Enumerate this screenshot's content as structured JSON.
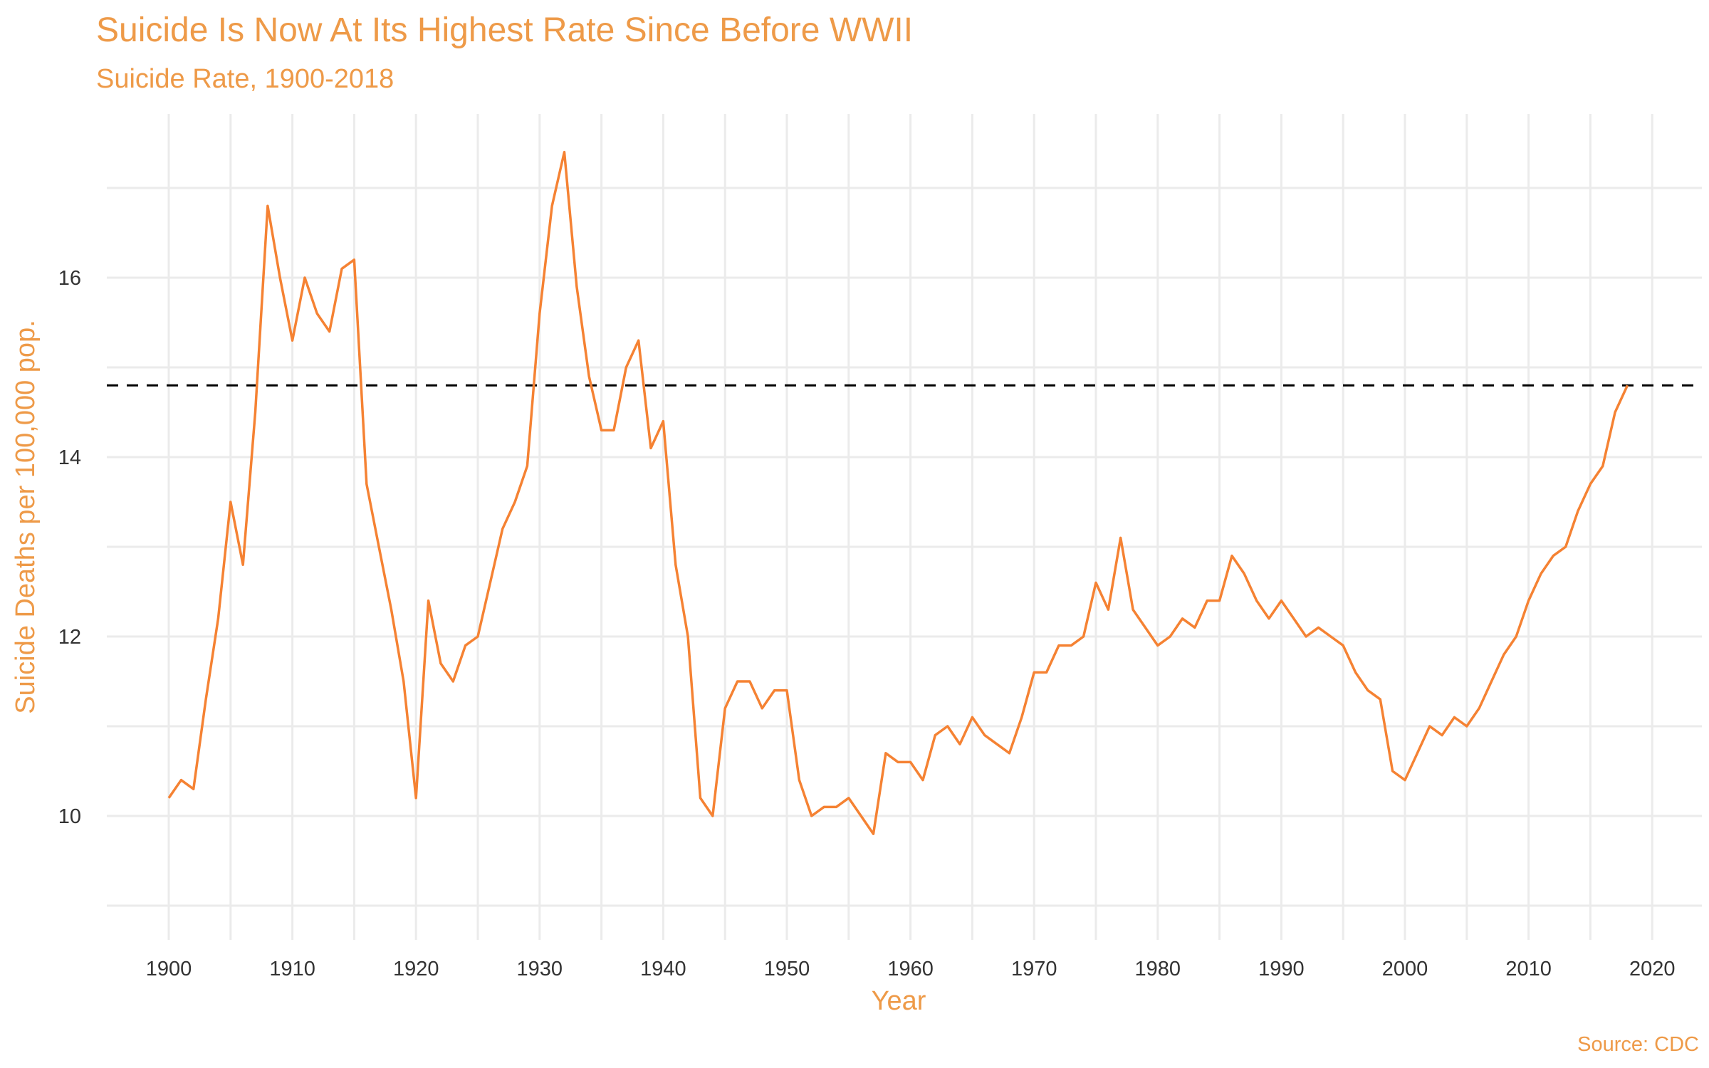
{
  "chart_data": {
    "type": "line",
    "title": "Suicide Is Now At Its Highest Rate Since Before WWII",
    "subtitle": "Suicide Rate, 1900-2018",
    "xlabel": "Year",
    "ylabel": "Suicide Deaths per 100,000 pop.",
    "caption": "Source: CDC",
    "xlim": [
      1899,
      2023
    ],
    "ylim": [
      8.6,
      17.9
    ],
    "x_ticks": [
      1900,
      1910,
      1920,
      1930,
      1940,
      1950,
      1960,
      1970,
      1980,
      1990,
      2000,
      2010,
      2020
    ],
    "y_ticks": [
      10,
      12,
      14,
      16
    ],
    "reference_line": {
      "y": 14.8,
      "style": "dashed",
      "color": "#000000"
    },
    "grid": true,
    "series": [
      {
        "color": "#F58233",
        "x": [
          1900,
          1901,
          1902,
          1903,
          1904,
          1905,
          1906,
          1907,
          1908,
          1909,
          1910,
          1911,
          1912,
          1913,
          1914,
          1915,
          1916,
          1917,
          1918,
          1919,
          1920,
          1921,
          1922,
          1923,
          1924,
          1925,
          1926,
          1927,
          1928,
          1929,
          1930,
          1931,
          1932,
          1933,
          1934,
          1935,
          1936,
          1937,
          1938,
          1939,
          1940,
          1941,
          1942,
          1943,
          1944,
          1945,
          1946,
          1947,
          1948,
          1949,
          1950,
          1951,
          1952,
          1953,
          1954,
          1955,
          1956,
          1957,
          1958,
          1959,
          1960,
          1961,
          1962,
          1963,
          1964,
          1965,
          1966,
          1967,
          1968,
          1969,
          1970,
          1971,
          1972,
          1973,
          1974,
          1975,
          1976,
          1977,
          1978,
          1979,
          1980,
          1981,
          1982,
          1983,
          1984,
          1985,
          1986,
          1987,
          1988,
          1989,
          1990,
          1991,
          1992,
          1993,
          1994,
          1995,
          1996,
          1997,
          1998,
          1999,
          2000,
          2001,
          2002,
          2003,
          2004,
          2005,
          2006,
          2007,
          2008,
          2009,
          2010,
          2011,
          2012,
          2013,
          2014,
          2015,
          2016,
          2017,
          2018
        ],
        "values": [
          10.2,
          10.4,
          10.3,
          11.3,
          12.2,
          13.5,
          12.8,
          14.5,
          16.8,
          16.0,
          15.3,
          16.0,
          15.6,
          15.4,
          16.1,
          16.2,
          13.7,
          13.0,
          12.3,
          11.5,
          10.2,
          12.4,
          11.7,
          11.5,
          11.9,
          12.0,
          12.6,
          13.2,
          13.5,
          13.9,
          15.6,
          16.8,
          17.4,
          15.9,
          14.9,
          14.3,
          14.3,
          15.0,
          15.3,
          14.1,
          14.4,
          12.8,
          12.0,
          10.2,
          10.0,
          11.2,
          11.5,
          11.5,
          11.2,
          11.4,
          11.4,
          10.4,
          10.0,
          10.1,
          10.1,
          10.2,
          10.0,
          9.8,
          10.7,
          10.6,
          10.6,
          10.4,
          10.9,
          11.0,
          10.8,
          11.1,
          10.9,
          10.8,
          10.7,
          11.1,
          11.6,
          11.6,
          11.9,
          11.9,
          12.0,
          12.6,
          12.3,
          13.1,
          12.3,
          12.1,
          11.9,
          12.0,
          12.2,
          12.1,
          12.4,
          12.4,
          12.9,
          12.7,
          12.4,
          12.2,
          12.4,
          12.2,
          12.0,
          12.1,
          12.0,
          11.9,
          11.6,
          11.4,
          11.3,
          10.5,
          10.4,
          10.7,
          11.0,
          10.9,
          11.1,
          11.0,
          11.2,
          11.5,
          11.8,
          12.0,
          12.4,
          12.7,
          12.9,
          13.0,
          13.4,
          13.7,
          13.9,
          14.5,
          14.8
        ]
      }
    ]
  }
}
